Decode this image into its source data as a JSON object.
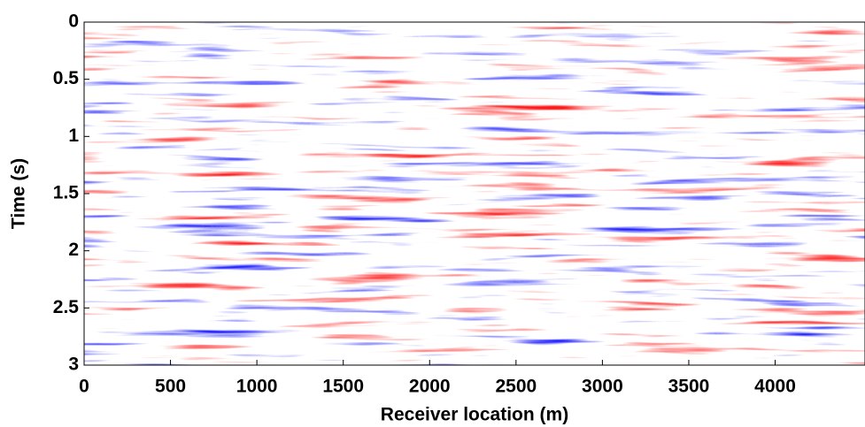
{
  "chart_data": {
    "type": "heatmap",
    "xlabel": "Receiver location (m)",
    "ylabel": "Time (s)",
    "xlim": [
      0,
      4520
    ],
    "xticks": [
      0,
      500,
      1000,
      1500,
      2000,
      2500,
      3000,
      3500,
      4000
    ],
    "ylim": [
      0,
      3
    ],
    "yticks": [
      0,
      0.5,
      1,
      1.5,
      2,
      2.5,
      3
    ],
    "y_inverted": true,
    "colormap": [
      "#1a1aff",
      "#ffffff",
      "#ff1a1a"
    ]
  }
}
